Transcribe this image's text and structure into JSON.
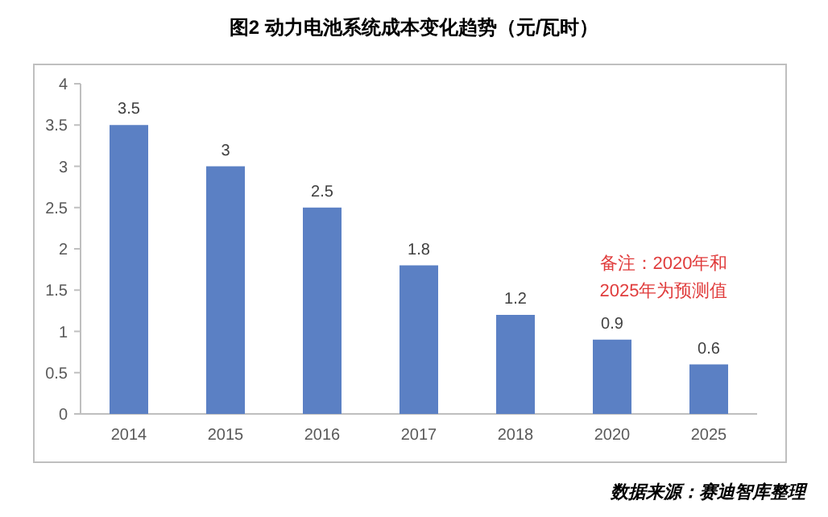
{
  "chart_data": {
    "type": "bar",
    "title": "图2  动力电池系统成本变化趋势（元/瓦时）",
    "categories": [
      "2014",
      "2015",
      "2016",
      "2017",
      "2018",
      "2020",
      "2025"
    ],
    "values": [
      3.5,
      3,
      2.5,
      1.8,
      1.2,
      0.9,
      0.6
    ],
    "color": "#5b80c4",
    "ylim": [
      0,
      4
    ],
    "yticks": [
      0,
      0.5,
      1,
      1.5,
      2,
      2.5,
      3,
      3.5,
      4
    ],
    "data_labels": true,
    "grid": false,
    "annotations": [
      "备注：2020年和\n2025年为预测值",
      "数据来源：赛迪智库整理"
    ]
  }
}
